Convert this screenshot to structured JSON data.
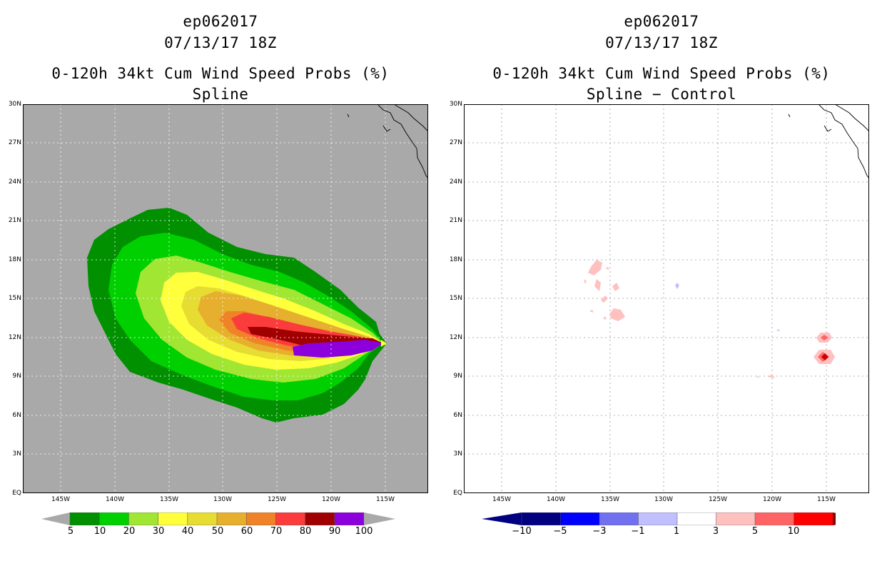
{
  "left": {
    "storm_id": "ep062017",
    "datetime": "07/13/17 18Z",
    "product": "0-120h 34kt Cum Wind Speed Probs (%)",
    "subtitle": "Spline",
    "lat_labels": [
      "30N",
      "27N",
      "24N",
      "21N",
      "18N",
      "15N",
      "12N",
      "9N",
      "6N",
      "3N",
      "EQ"
    ],
    "lon_labels": [
      "145W",
      "140W",
      "135W",
      "130W",
      "125W",
      "120W",
      "115W"
    ],
    "colorbar_labels": [
      "5",
      "10",
      "20",
      "30",
      "40",
      "50",
      "60",
      "70",
      "80",
      "90",
      "100"
    ],
    "colorbar_colors": [
      "#009000",
      "#00d000",
      "#a0e632",
      "#ffff3c",
      "#e6dc32",
      "#e6af2d",
      "#f08228",
      "#fa3c3c",
      "#a00000",
      "#8c00dc"
    ],
    "background_color": "#a9a9a9"
  },
  "right": {
    "storm_id": "ep062017",
    "datetime": "07/13/17 18Z",
    "product": "0-120h 34kt Cum Wind Speed Probs (%)",
    "subtitle": "Spline − Control",
    "lat_labels": [
      "30N",
      "27N",
      "24N",
      "21N",
      "18N",
      "15N",
      "12N",
      "9N",
      "6N",
      "3N",
      "EQ"
    ],
    "lon_labels": [
      "145W",
      "140W",
      "135W",
      "130W",
      "125W",
      "120W",
      "115W"
    ],
    "colorbar_labels": [
      "−10",
      "−5",
      "−3",
      "−1",
      "1",
      "3",
      "5",
      "10"
    ],
    "colorbar_colors": [
      "#000080",
      "#0000ff",
      "#7070f0",
      "#c0c0ff",
      "#ffffff",
      "#ffc0c0",
      "#ff6464",
      "#ff0000"
    ],
    "colorbar_end_colors": [
      "#000080",
      "#800000"
    ]
  }
}
